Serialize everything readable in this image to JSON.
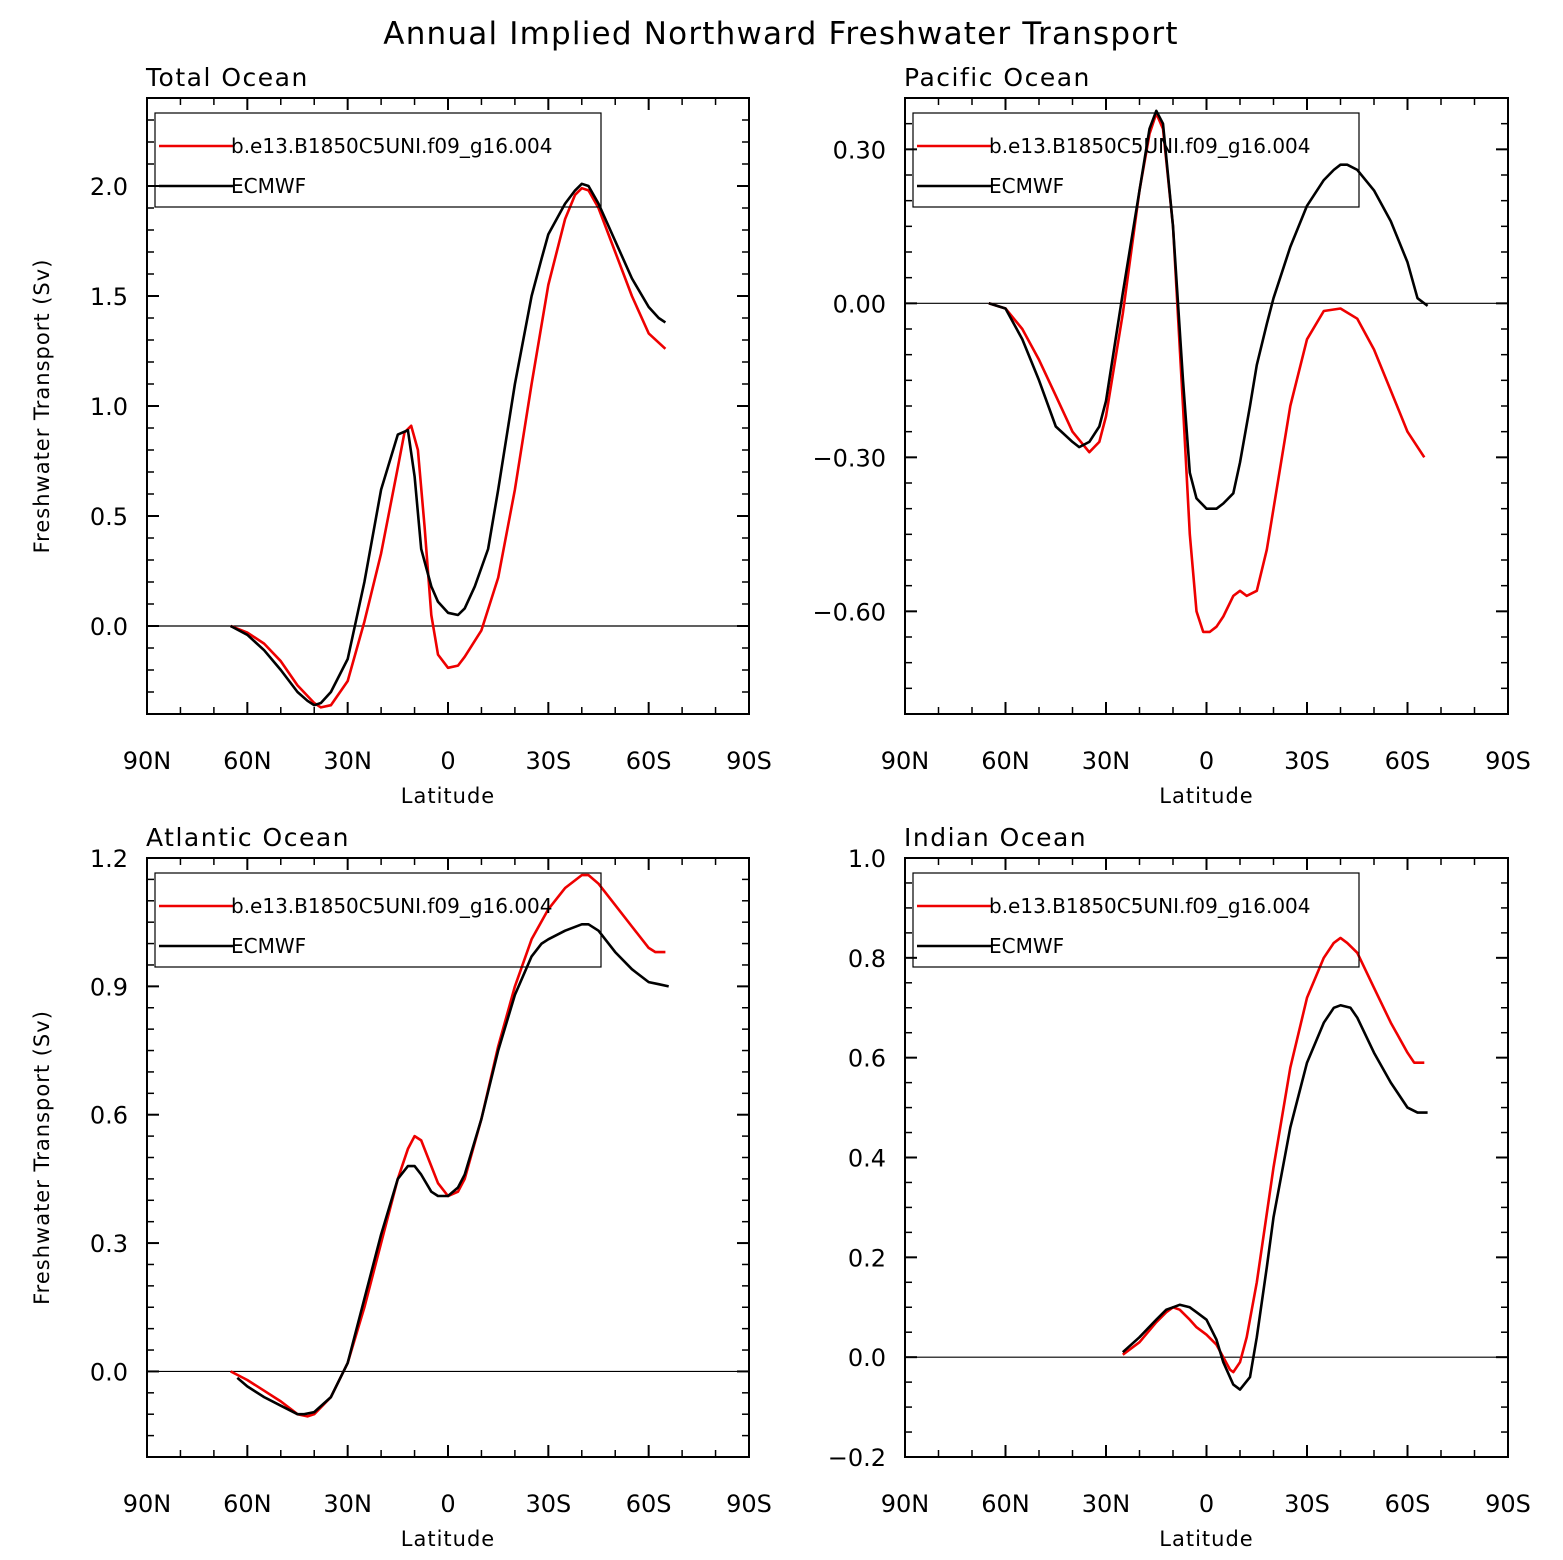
{
  "figure_title": "Annual Implied Northward Freshwater Transport",
  "chart_data": [
    {
      "type": "line",
      "title": "Total Ocean",
      "xlabel": "Latitude",
      "ylabel": "Freshwater Transport (Sv)",
      "xlim": [
        90,
        -90
      ],
      "ylim": [
        -0.4,
        2.4
      ],
      "x_ticks": [
        90,
        60,
        30,
        0,
        -30,
        -60,
        -90
      ],
      "x_tick_labels": [
        "90N",
        "60N",
        "30N",
        "0",
        "30S",
        "60S",
        "90S"
      ],
      "y_ticks": [
        0.0,
        0.5,
        1.0,
        1.5,
        2.0
      ],
      "y_tick_labels": [
        "0.0",
        "0.5",
        "1.0",
        "1.5",
        "2.0"
      ],
      "y_minor_step": 0.1,
      "zero_line": true,
      "legend": [
        "b.e13.B1850C5UNI.f09_g16.004",
        "ECMWF"
      ],
      "series": [
        {
          "name": "b.e13.B1850C5UNI.f09_g16.004",
          "color": "#ee0000",
          "x": [
            65,
            60,
            55,
            50,
            45,
            40,
            38,
            35,
            30,
            25,
            20,
            15,
            13,
            11,
            9,
            7,
            5,
            3,
            0,
            -3,
            -5,
            -10,
            -15,
            -20,
            -25,
            -30,
            -35,
            -38,
            -40,
            -42,
            -45,
            -50,
            -55,
            -60,
            -65
          ],
          "y": [
            0,
            -0.03,
            -0.08,
            -0.16,
            -0.27,
            -0.35,
            -0.37,
            -0.36,
            -0.25,
            0.02,
            0.33,
            0.72,
            0.88,
            0.91,
            0.8,
            0.45,
            0.05,
            -0.13,
            -0.19,
            -0.18,
            -0.14,
            -0.02,
            0.22,
            0.62,
            1.1,
            1.55,
            1.85,
            1.96,
            1.99,
            1.98,
            1.9,
            1.7,
            1.5,
            1.33,
            1.26
          ]
        },
        {
          "name": "ECMWF",
          "color": "#000000",
          "x": [
            65,
            60,
            55,
            50,
            45,
            42,
            40,
            38,
            35,
            30,
            25,
            20,
            15,
            12,
            10,
            8,
            5,
            3,
            0,
            -3,
            -5,
            -8,
            -12,
            -15,
            -20,
            -25,
            -28,
            -30,
            -35,
            -38,
            -40,
            -42,
            -45,
            -50,
            -55,
            -60,
            -63,
            -65
          ],
          "y": [
            0,
            -0.04,
            -0.11,
            -0.2,
            -0.3,
            -0.34,
            -0.36,
            -0.35,
            -0.3,
            -0.15,
            0.2,
            0.62,
            0.87,
            0.89,
            0.68,
            0.35,
            0.18,
            0.11,
            0.06,
            0.05,
            0.08,
            0.18,
            0.35,
            0.62,
            1.1,
            1.5,
            1.67,
            1.78,
            1.92,
            1.98,
            2.01,
            2.0,
            1.92,
            1.75,
            1.58,
            1.45,
            1.4,
            1.38
          ]
        }
      ]
    },
    {
      "type": "line",
      "title": "Pacific Ocean",
      "xlabel": "Latitude",
      "ylabel": "",
      "xlim": [
        90,
        -90
      ],
      "ylim": [
        -0.8,
        0.4
      ],
      "x_ticks": [
        90,
        60,
        30,
        0,
        -30,
        -60,
        -90
      ],
      "x_tick_labels": [
        "90N",
        "60N",
        "30N",
        "0",
        "30S",
        "60S",
        "90S"
      ],
      "y_ticks": [
        -0.6,
        -0.3,
        0.0,
        0.3
      ],
      "y_tick_labels": [
        "−0.60",
        "−0.30",
        "0.00",
        "0.30"
      ],
      "y_minor_step": 0.05,
      "zero_line": true,
      "legend": [
        "b.e13.B1850C5UNI.f09_g16.004",
        "ECMWF"
      ],
      "series": [
        {
          "name": "b.e13.B1850C5UNI.f09_g16.004",
          "color": "#ee0000",
          "x": [
            65,
            60,
            55,
            50,
            45,
            40,
            35,
            32,
            30,
            25,
            20,
            17,
            15,
            13,
            10,
            7,
            5,
            3,
            1,
            -1,
            -3,
            -5,
            -8,
            -10,
            -12,
            -15,
            -18,
            -20,
            -25,
            -30,
            -35,
            -40,
            -45,
            -50,
            -55,
            -60,
            -65
          ],
          "y": [
            0,
            -0.01,
            -0.05,
            -0.11,
            -0.18,
            -0.25,
            -0.29,
            -0.27,
            -0.22,
            -0.02,
            0.22,
            0.33,
            0.37,
            0.34,
            0.15,
            -0.2,
            -0.45,
            -0.6,
            -0.64,
            -0.64,
            -0.63,
            -0.61,
            -0.57,
            -0.56,
            -0.57,
            -0.56,
            -0.48,
            -0.4,
            -0.2,
            -0.07,
            -0.015,
            -0.01,
            -0.03,
            -0.09,
            -0.17,
            -0.25,
            -0.3
          ]
        },
        {
          "name": "ECMWF",
          "color": "#000000",
          "x": [
            65,
            60,
            55,
            50,
            45,
            40,
            38,
            35,
            32,
            30,
            25,
            20,
            17,
            15,
            13,
            10,
            7,
            5,
            3,
            0,
            -3,
            -5,
            -8,
            -10,
            -13,
            -15,
            -18,
            -20,
            -25,
            -30,
            -35,
            -38,
            -40,
            -42,
            -45,
            -50,
            -55,
            -60,
            -63,
            -66
          ],
          "y": [
            0,
            -0.01,
            -0.07,
            -0.15,
            -0.24,
            -0.27,
            -0.28,
            -0.27,
            -0.24,
            -0.19,
            0.02,
            0.22,
            0.34,
            0.375,
            0.35,
            0.15,
            -0.15,
            -0.33,
            -0.38,
            -0.4,
            -0.4,
            -0.39,
            -0.37,
            -0.31,
            -0.2,
            -0.12,
            -0.04,
            0.01,
            0.11,
            0.19,
            0.24,
            0.26,
            0.27,
            0.27,
            0.26,
            0.22,
            0.16,
            0.08,
            0.01,
            -0.005
          ]
        }
      ]
    },
    {
      "type": "line",
      "title": "Atlantic Ocean",
      "xlabel": "Latitude",
      "ylabel": "Freshwater Transport (Sv)",
      "xlim": [
        90,
        -90
      ],
      "ylim": [
        -0.2,
        1.2
      ],
      "x_ticks": [
        90,
        60,
        30,
        0,
        -30,
        -60,
        -90
      ],
      "x_tick_labels": [
        "90N",
        "60N",
        "30N",
        "0",
        "30S",
        "60S",
        "90S"
      ],
      "y_ticks": [
        0.0,
        0.3,
        0.6,
        0.9,
        1.2
      ],
      "y_tick_labels": [
        "0.0",
        "0.3",
        "0.6",
        "0.9",
        "1.2"
      ],
      "y_minor_step": 0.05,
      "zero_line": true,
      "legend": [
        "b.e13.B1850C5UNI.f09_g16.004",
        "ECMWF"
      ],
      "series": [
        {
          "name": "b.e13.B1850C5UNI.f09_g16.004",
          "color": "#ee0000",
          "x": [
            65,
            60,
            55,
            50,
            45,
            42,
            40,
            35,
            30,
            25,
            20,
            15,
            12,
            10,
            8,
            5,
            3,
            0,
            -3,
            -5,
            -10,
            -15,
            -20,
            -25,
            -30,
            -35,
            -40,
            -42,
            -45,
            -50,
            -55,
            -60,
            -62,
            -65
          ],
          "y": [
            0,
            -0.02,
            -0.045,
            -0.07,
            -0.1,
            -0.105,
            -0.1,
            -0.06,
            0.02,
            0.15,
            0.3,
            0.45,
            0.52,
            0.55,
            0.54,
            0.48,
            0.44,
            0.41,
            0.42,
            0.45,
            0.59,
            0.76,
            0.9,
            1.01,
            1.08,
            1.13,
            1.16,
            1.16,
            1.14,
            1.09,
            1.04,
            0.99,
            0.98,
            0.98
          ]
        },
        {
          "name": "ECMWF",
          "color": "#000000",
          "x": [
            63,
            60,
            55,
            50,
            45,
            43,
            40,
            35,
            30,
            25,
            20,
            15,
            12,
            10,
            8,
            5,
            3,
            0,
            -3,
            -5,
            -10,
            -15,
            -20,
            -25,
            -28,
            -30,
            -35,
            -40,
            -42,
            -45,
            -50,
            -55,
            -60,
            -63,
            -66
          ],
          "y": [
            -0.015,
            -0.035,
            -0.06,
            -0.08,
            -0.1,
            -0.1,
            -0.095,
            -0.06,
            0.02,
            0.17,
            0.32,
            0.45,
            0.48,
            0.48,
            0.46,
            0.42,
            0.41,
            0.41,
            0.43,
            0.46,
            0.59,
            0.75,
            0.88,
            0.97,
            1.0,
            1.01,
            1.03,
            1.045,
            1.045,
            1.03,
            0.98,
            0.94,
            0.91,
            0.905,
            0.9
          ]
        }
      ]
    },
    {
      "type": "line",
      "title": "Indian Ocean",
      "xlabel": "Latitude",
      "ylabel": "",
      "xlim": [
        90,
        -90
      ],
      "ylim": [
        -0.2,
        1.0
      ],
      "x_ticks": [
        90,
        60,
        30,
        0,
        -30,
        -60,
        -90
      ],
      "x_tick_labels": [
        "90N",
        "60N",
        "30N",
        "0",
        "30S",
        "60S",
        "90S"
      ],
      "y_ticks": [
        -0.2,
        0.0,
        0.2,
        0.4,
        0.6,
        0.8,
        1.0
      ],
      "y_tick_labels": [
        "−0.2",
        "0.0",
        "0.2",
        "0.4",
        "0.6",
        "0.8",
        "1.0"
      ],
      "y_minor_step": 0.05,
      "zero_line": true,
      "legend": [
        "b.e13.B1850C5UNI.f09_g16.004",
        "ECMWF"
      ],
      "series": [
        {
          "name": "b.e13.B1850C5UNI.f09_g16.004",
          "color": "#ee0000",
          "x": [
            25,
            20,
            15,
            12,
            10,
            8,
            5,
            3,
            0,
            -3,
            -5,
            -7,
            -8,
            -10,
            -12,
            -15,
            -20,
            -25,
            -30,
            -35,
            -38,
            -40,
            -42,
            -45,
            -50,
            -55,
            -60,
            -62,
            -65
          ],
          "y": [
            0.005,
            0.03,
            0.07,
            0.09,
            0.1,
            0.095,
            0.075,
            0.06,
            0.045,
            0.025,
            0.0,
            -0.025,
            -0.03,
            -0.01,
            0.04,
            0.15,
            0.38,
            0.58,
            0.72,
            0.8,
            0.83,
            0.84,
            0.83,
            0.81,
            0.74,
            0.67,
            0.61,
            0.59,
            0.59
          ]
        },
        {
          "name": "ECMWF",
          "color": "#000000",
          "x": [
            25,
            20,
            15,
            12,
            10,
            8,
            5,
            3,
            0,
            -3,
            -5,
            -8,
            -10,
            -13,
            -15,
            -18,
            -20,
            -25,
            -30,
            -35,
            -38,
            -40,
            -43,
            -45,
            -50,
            -55,
            -60,
            -63,
            -66
          ],
          "y": [
            0.01,
            0.04,
            0.075,
            0.095,
            0.1,
            0.105,
            0.1,
            0.09,
            0.075,
            0.035,
            -0.01,
            -0.055,
            -0.065,
            -0.04,
            0.04,
            0.18,
            0.28,
            0.46,
            0.59,
            0.67,
            0.7,
            0.705,
            0.7,
            0.68,
            0.61,
            0.55,
            0.5,
            0.49,
            0.49
          ]
        }
      ]
    }
  ]
}
